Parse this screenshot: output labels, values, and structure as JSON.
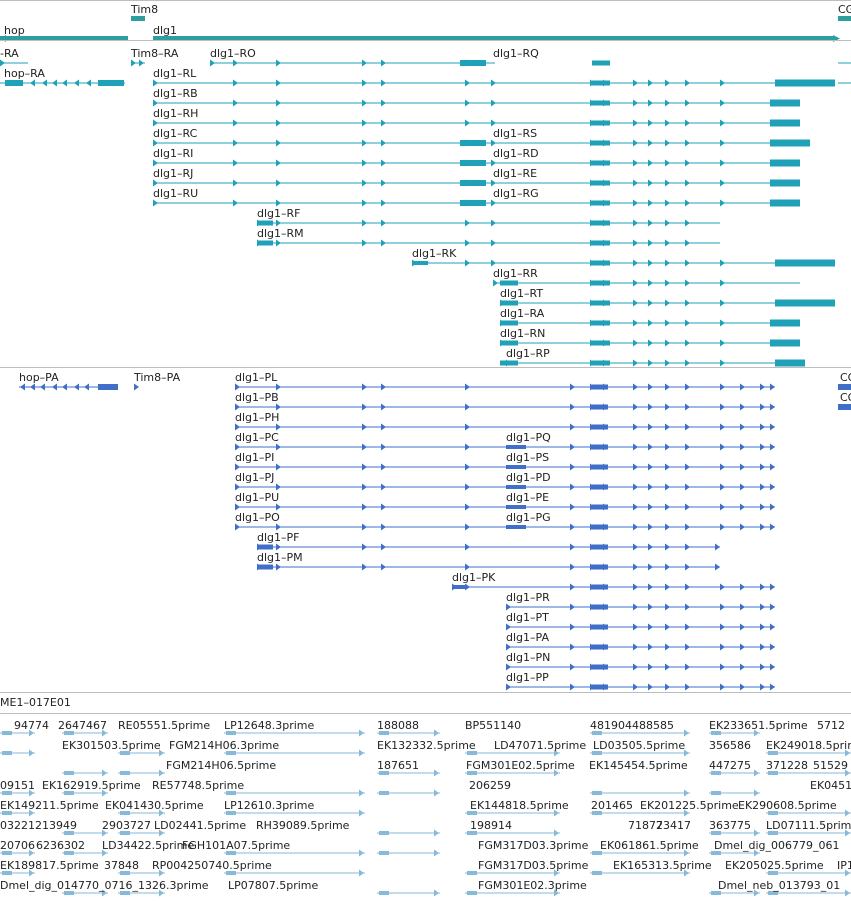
{
  "colors": {
    "gene": "#2e9e9e",
    "transcript": "#1fa2b8",
    "protein": "#3f6fc8",
    "est": "#87b9da",
    "separator": "#bdbdbd",
    "text": "#222222"
  },
  "genes": {
    "labels": [
      "hop",
      "Tim8",
      "dlg1",
      "CG"
    ]
  },
  "transcripts": {
    "labels": [
      "-RA",
      "Tim8–RA",
      "dlg1–RO",
      "dlg1–RQ",
      "hop–RA",
      "dlg1–RL",
      "dlg1–RB",
      "dlg1–RH",
      "dlg1–RC",
      "dlg1–RS",
      "dlg1–RI",
      "dlg1–RD",
      "dlg1–RJ",
      "dlg1–RE",
      "dlg1–RU",
      "dlg1–RG",
      "dlg1–RF",
      "dlg1–RM",
      "dlg1–RK",
      "dlg1–RR",
      "dlg1–RT",
      "dlg1–RA",
      "dlg1–RN",
      "dlg1–RP"
    ]
  },
  "proteins": {
    "labels": [
      "hop–PA",
      "Tim8–PA",
      "dlg1–PL",
      "dlg1–PB",
      "dlg1–PH",
      "dlg1–PC",
      "dlg1–PQ",
      "dlg1–PI",
      "dlg1–PS",
      "dlg1–PJ",
      "dlg1–PD",
      "dlg1–PU",
      "dlg1–PE",
      "dlg1–PO",
      "dlg1–PG",
      "dlg1–PF",
      "dlg1–PM",
      "dlg1–PK",
      "dlg1–PR",
      "dlg1–PT",
      "dlg1–PA",
      "dlg1–PN",
      "dlg1–PP",
      "CG",
      "CG"
    ]
  },
  "clone": {
    "label": "ME1–017E01"
  },
  "ests": {
    "labels": [
      "94774",
      "2647467",
      "RE05551.5prime",
      "LP12648.3prime",
      "188088",
      "BP551140",
      "481904488585",
      "EK233651.5prime",
      "5712",
      "EK301503.5prime",
      "FGM214H06.3prime",
      "EK132332.5prime",
      "LD47071.5prime",
      "LD03505.5prime",
      "356586",
      "EK249018.5prime",
      "FGM214H06.5prime",
      "187651",
      "FGM301E02.5prime",
      "EK145454.5prime",
      "447275",
      "371228",
      "51529",
      "09151",
      "EK162919.5prime",
      "RE57748.5prime",
      "206259",
      "EK0451",
      "EK149211.5prime",
      "EK041430.5prime",
      "LP12610.3prime",
      "EK144818.5prime",
      "201465",
      "EK201225.5prime",
      "EK290608.5prime",
      "03221213949",
      "2903727",
      "LD02441.5prime",
      "RH39089.5prime",
      "198914",
      "71877",
      "23417",
      "363775",
      "LD07111.5prime",
      "20706",
      "6236302",
      "LD34422.5prime",
      "FGH101A07.5prime",
      "FGM317D03.3prime",
      "EK061861.5prime",
      "Dmel_dig_006779_061",
      "EK189817.5prime",
      "37848",
      "RP004250740.5prime",
      "FGM317D03.5prime",
      "EK165313.5prime",
      "EK205025.5prime",
      "IP1",
      "Dmel_dig_014770_0716_1326.3prime",
      "LP07807.5prime",
      "FGM301E02.3prime",
      "Dmel_neb_013793_01"
    ]
  }
}
